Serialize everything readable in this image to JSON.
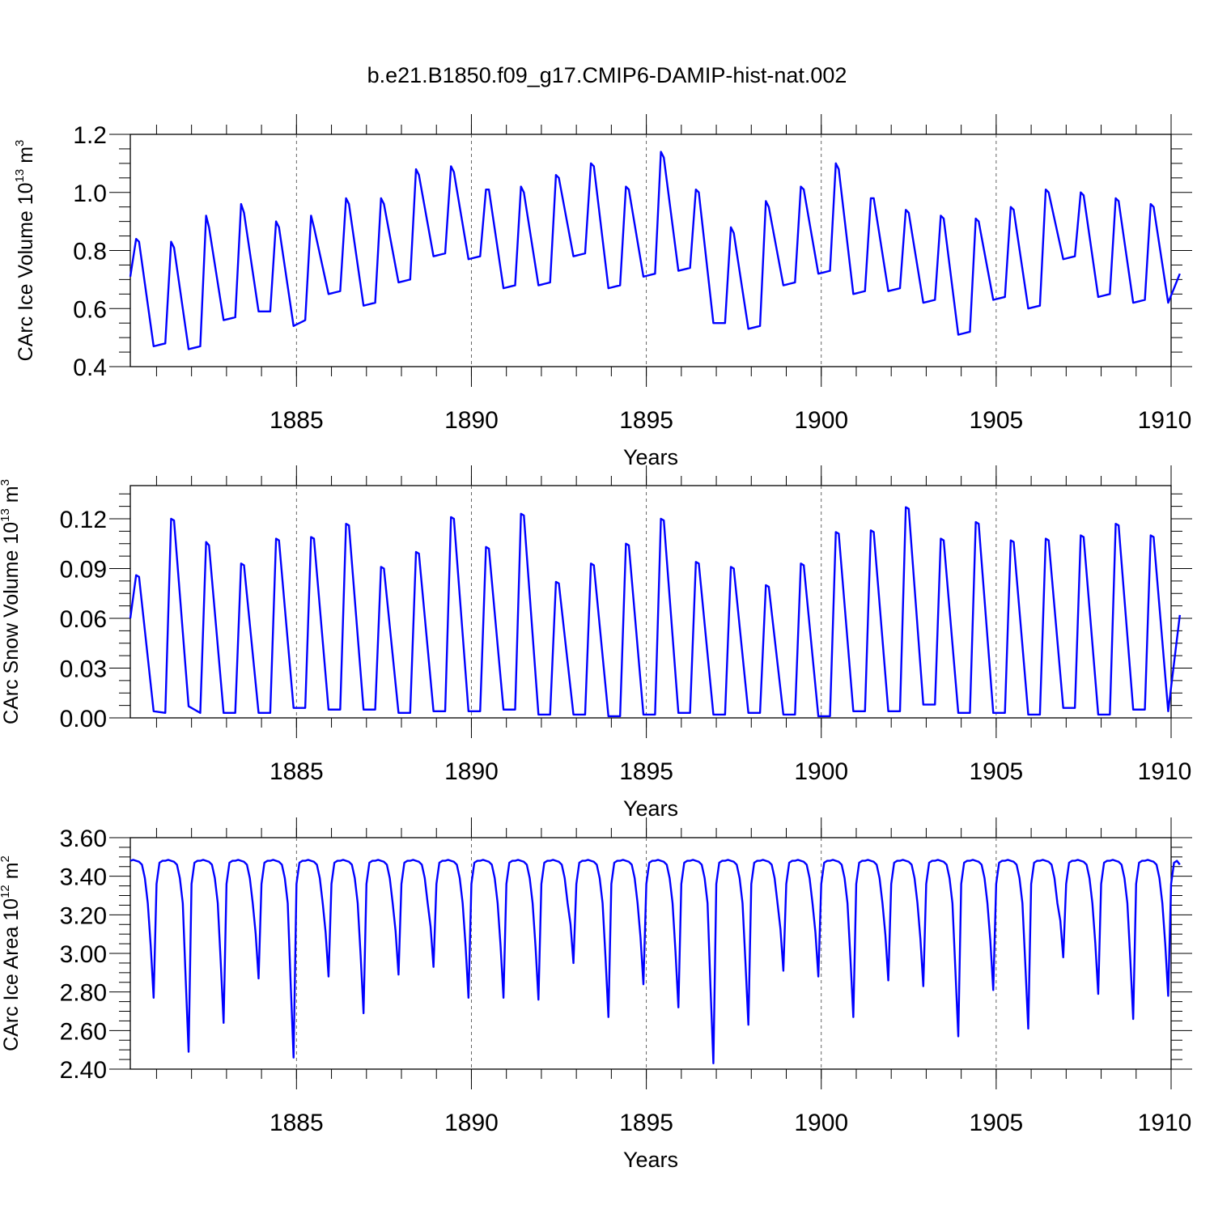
{
  "title": "b.e21.B1850.f09_g17.CMIP6-DAMIP-hist-nat.002",
  "line_color": "#0000ff",
  "chart_data": [
    {
      "type": "line",
      "id": "ice-volume",
      "ylabel": "CArc Ice Volume 10^13 m^3",
      "ylabel_main": "CArc Ice Volume 10",
      "ylabel_exp": "13",
      "ylabel_unit": "m",
      "ylabel_unit_exp": "3",
      "xlabel": "Years",
      "xlim": [
        1880.25,
        1910.0
      ],
      "ylim": [
        0.4,
        1.2
      ],
      "yticks": [
        0.4,
        0.6,
        0.8,
        1.0,
        1.2
      ],
      "ytick_labels": [
        "0.4",
        "0.6",
        "0.8",
        "1.0",
        "1.2"
      ],
      "xticks": [
        1885,
        1890,
        1895,
        1900,
        1905,
        1910
      ],
      "xtick_labels": [
        "1885",
        "1890",
        "1895",
        "1900",
        "1905",
        "1910"
      ],
      "series": [
        {
          "name": "CArc Ice Volume",
          "annual": [
            [
              0.71,
              0.84,
              0.83,
              0.47
            ],
            [
              0.48,
              0.83,
              0.81,
              0.46
            ],
            [
              0.47,
              0.92,
              0.88,
              0.56
            ],
            [
              0.57,
              0.96,
              0.93,
              0.59
            ],
            [
              0.59,
              0.9,
              0.88,
              0.54
            ],
            [
              0.56,
              0.92,
              0.88,
              0.65
            ],
            [
              0.66,
              0.98,
              0.96,
              0.61
            ],
            [
              0.62,
              0.98,
              0.96,
              0.69
            ],
            [
              0.7,
              1.08,
              1.06,
              0.78
            ],
            [
              0.79,
              1.09,
              1.07,
              0.77
            ],
            [
              0.78,
              1.01,
              1.01,
              0.67
            ],
            [
              0.68,
              1.02,
              1.0,
              0.68
            ],
            [
              0.69,
              1.06,
              1.05,
              0.78
            ],
            [
              0.79,
              1.1,
              1.09,
              0.67
            ],
            [
              0.68,
              1.02,
              1.01,
              0.71
            ],
            [
              0.72,
              1.14,
              1.12,
              0.73
            ],
            [
              0.74,
              1.01,
              1.0,
              0.55
            ],
            [
              0.55,
              0.88,
              0.86,
              0.53
            ],
            [
              0.54,
              0.97,
              0.95,
              0.68
            ],
            [
              0.69,
              1.02,
              1.01,
              0.72
            ],
            [
              0.73,
              1.1,
              1.08,
              0.65
            ],
            [
              0.66,
              0.98,
              0.98,
              0.66
            ],
            [
              0.67,
              0.94,
              0.93,
              0.62
            ],
            [
              0.63,
              0.92,
              0.91,
              0.51
            ],
            [
              0.52,
              0.91,
              0.9,
              0.63
            ],
            [
              0.64,
              0.95,
              0.94,
              0.6
            ],
            [
              0.61,
              1.01,
              1.0,
              0.77
            ],
            [
              0.78,
              1.0,
              0.99,
              0.64
            ],
            [
              0.65,
              0.98,
              0.97,
              0.62
            ],
            [
              0.63,
              0.96,
              0.95,
              0.62
            ],
            [
              0.72,
              0.72,
              0.72,
              0.72
            ]
          ]
        }
      ]
    },
    {
      "type": "line",
      "id": "snow-volume",
      "ylabel": "CArc Snow Volume 10^13 m^3",
      "ylabel_main": "CArc Snow Volume 10",
      "ylabel_exp": "13",
      "ylabel_unit": "m",
      "ylabel_unit_exp": "3",
      "xlabel": "Years",
      "xlim": [
        1880.25,
        1910.0
      ],
      "ylim": [
        0.0,
        0.14
      ],
      "yticks": [
        0.0,
        0.03,
        0.06,
        0.09,
        0.12
      ],
      "ytick_labels": [
        "0.00",
        "0.03",
        "0.06",
        "0.09",
        "0.12"
      ],
      "xticks": [
        1885,
        1890,
        1895,
        1900,
        1905,
        1910
      ],
      "xtick_labels": [
        "1885",
        "1890",
        "1895",
        "1900",
        "1905",
        "1910"
      ],
      "series": [
        {
          "name": "CArc Snow Volume",
          "annual": [
            [
              0.06,
              0.086,
              0.085,
              0.004
            ],
            [
              0.003,
              0.12,
              0.119,
              0.007
            ],
            [
              0.003,
              0.106,
              0.104,
              0.003
            ],
            [
              0.003,
              0.093,
              0.092,
              0.003
            ],
            [
              0.003,
              0.108,
              0.107,
              0.006
            ],
            [
              0.006,
              0.109,
              0.108,
              0.005
            ],
            [
              0.005,
              0.117,
              0.116,
              0.005
            ],
            [
              0.005,
              0.091,
              0.09,
              0.003
            ],
            [
              0.003,
              0.1,
              0.099,
              0.004
            ],
            [
              0.004,
              0.121,
              0.12,
              0.004
            ],
            [
              0.004,
              0.103,
              0.102,
              0.005
            ],
            [
              0.005,
              0.123,
              0.122,
              0.002
            ],
            [
              0.002,
              0.082,
              0.081,
              0.002
            ],
            [
              0.002,
              0.093,
              0.092,
              0.001
            ],
            [
              0.001,
              0.105,
              0.104,
              0.002
            ],
            [
              0.002,
              0.12,
              0.119,
              0.003
            ],
            [
              0.003,
              0.094,
              0.093,
              0.002
            ],
            [
              0.002,
              0.091,
              0.09,
              0.003
            ],
            [
              0.003,
              0.08,
              0.079,
              0.002
            ],
            [
              0.002,
              0.093,
              0.092,
              0.001
            ],
            [
              0.001,
              0.112,
              0.111,
              0.004
            ],
            [
              0.004,
              0.113,
              0.112,
              0.004
            ],
            [
              0.004,
              0.127,
              0.126,
              0.008
            ],
            [
              0.008,
              0.108,
              0.107,
              0.003
            ],
            [
              0.003,
              0.118,
              0.117,
              0.003
            ],
            [
              0.003,
              0.107,
              0.106,
              0.002
            ],
            [
              0.002,
              0.108,
              0.107,
              0.006
            ],
            [
              0.006,
              0.11,
              0.109,
              0.002
            ],
            [
              0.002,
              0.117,
              0.116,
              0.005
            ],
            [
              0.005,
              0.11,
              0.109,
              0.004
            ],
            [
              0.062,
              0.062,
              0.062,
              0.062
            ]
          ]
        }
      ]
    },
    {
      "type": "line",
      "id": "ice-area",
      "ylabel": "CArc Ice Area 10^12 m^2",
      "ylabel_main": "CArc Ice Area 10",
      "ylabel_exp": "12",
      "ylabel_unit": "m",
      "ylabel_unit_exp": "2",
      "xlabel": "Years",
      "xlim": [
        1880.25,
        1910.0
      ],
      "ylim": [
        2.4,
        3.6
      ],
      "yticks": [
        2.4,
        2.6,
        2.8,
        3.0,
        3.2,
        3.4,
        3.6
      ],
      "ytick_labels": [
        "2.40",
        "2.60",
        "2.80",
        "3.00",
        "3.20",
        "3.40",
        "3.60"
      ],
      "xticks": [
        1885,
        1890,
        1895,
        1900,
        1905,
        1910
      ],
      "xtick_labels": [
        "1885",
        "1890",
        "1895",
        "1900",
        "1905",
        "1910"
      ],
      "series": [
        {
          "name": "CArc Ice Area",
          "minima": [
            2.77,
            2.49,
            2.64,
            2.87,
            2.46,
            2.88,
            2.69,
            2.89,
            2.93,
            2.77,
            2.77,
            2.76,
            2.95,
            2.67,
            2.84,
            2.72,
            2.43,
            2.63,
            2.91,
            2.88,
            2.67,
            2.86,
            2.83,
            2.57,
            2.81,
            2.61,
            2.98,
            2.79,
            2.66,
            2.78
          ],
          "plateau": 3.48,
          "end": 3.46
        }
      ]
    }
  ]
}
